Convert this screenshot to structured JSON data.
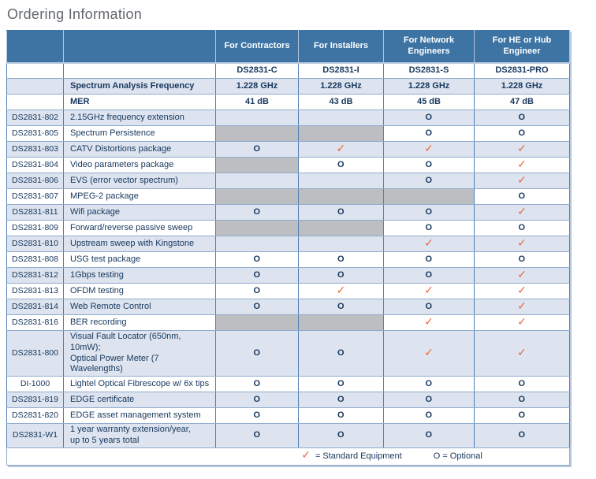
{
  "page": {
    "title": "Ordering Information"
  },
  "symbols": {
    "standard": "✓",
    "optional": "O"
  },
  "legend": {
    "standard_label": "= Standard Equipment",
    "optional_label": "O = Optional"
  },
  "colors": {
    "header_blue": "#3d74a4",
    "band_light_blue": "#dde4ef",
    "unavailable_gray": "#bcbec1",
    "check_orange": "#e8683f",
    "text_navy": "#17375d",
    "title_gray": "#61676e"
  },
  "table": {
    "columns": [
      "For Contractors",
      "For Installers",
      "For Network Engineers",
      "For HE or Hub Engineer"
    ],
    "models": [
      "DS2831-C",
      "DS2831-I",
      "DS2831-S",
      "DS2831-PRO"
    ],
    "spec_rows": [
      {
        "label": "Spectrum Analysis Frequency",
        "values": [
          "1.228 GHz",
          "1.228 GHz",
          "1.228 GHz",
          "1.228 GHz"
        ]
      },
      {
        "label": "MER",
        "values": [
          "41 dB",
          "43 dB",
          "45 dB",
          "47 dB"
        ]
      }
    ],
    "feature_rows": [
      {
        "code": "DS2831-802",
        "description": "2.15GHz frequency extension",
        "values": [
          "na",
          "na",
          "O",
          "O"
        ]
      },
      {
        "code": "DS2831-805",
        "description": "Spectrum Persistence",
        "values": [
          "na",
          "na",
          "O",
          "O"
        ]
      },
      {
        "code": "DS2831-803",
        "description": "CATV Distortions package",
        "values": [
          "O",
          "check",
          "check",
          "check"
        ]
      },
      {
        "code": "DS2831-804",
        "description": "Video parameters package",
        "values": [
          "na",
          "O",
          "O",
          "check"
        ]
      },
      {
        "code": "DS2831-806",
        "description": "EVS (error vector spectrum)",
        "values": [
          "na",
          "na",
          "O",
          "check"
        ]
      },
      {
        "code": "DS2831-807",
        "description": "MPEG-2 package",
        "values": [
          "na",
          "na",
          "na",
          "O"
        ]
      },
      {
        "code": "DS2831-811",
        "description": "Wifi package",
        "values": [
          "O",
          "O",
          "O",
          "check"
        ]
      },
      {
        "code": "DS2831-809",
        "description": "Forward/reverse passive sweep",
        "values": [
          "na",
          "na",
          "O",
          "O"
        ]
      },
      {
        "code": "DS2831-810",
        "description": "Upstream sweep with Kingstone",
        "values": [
          "na",
          "na",
          "check",
          "check"
        ]
      },
      {
        "code": "DS2831-808",
        "description": "USG test package",
        "values": [
          "O",
          "O",
          "O",
          "O"
        ]
      },
      {
        "code": "DS2831-812",
        "description": "1Gbps testing",
        "values": [
          "O",
          "O",
          "O",
          "check"
        ]
      },
      {
        "code": "DS2831-813",
        "description": "OFDM testing",
        "values": [
          "O",
          "check",
          "check",
          "check"
        ]
      },
      {
        "code": "DS2831-814",
        "description": "Web Remote Control",
        "values": [
          "O",
          "O",
          "O",
          "check"
        ]
      },
      {
        "code": "DS2831-816",
        "description": "BER recording",
        "values": [
          "na",
          "na",
          "check",
          "check"
        ]
      },
      {
        "code": "DS2831-800",
        "description": "Visual Fault Locator (650nm, 10mW);\nOptical Power Meter (7 Wavelengths)",
        "values": [
          "O",
          "O",
          "check",
          "check"
        ]
      },
      {
        "code": "DI-1000",
        "description": "Lightel Optical Fibrescope w/ 6x tips",
        "values": [
          "O",
          "O",
          "O",
          "O"
        ]
      },
      {
        "code": "DS2831-819",
        "description": "EDGE certificate",
        "values": [
          "O",
          "O",
          "O",
          "O"
        ]
      },
      {
        "code": "DS2831-820",
        "description": "EDGE asset management system",
        "values": [
          "O",
          "O",
          "O",
          "O"
        ]
      },
      {
        "code": "DS2831-W1",
        "description": "1 year warranty extension/year,\nup to 5 years total",
        "values": [
          "O",
          "O",
          "O",
          "O"
        ]
      }
    ]
  }
}
